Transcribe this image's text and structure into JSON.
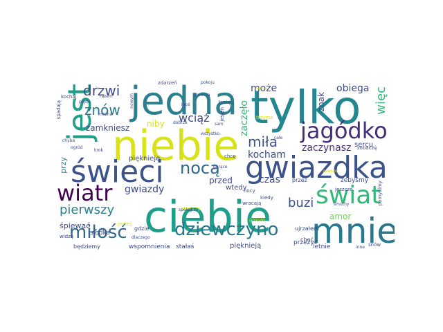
{
  "words": {
    "tylko": "tylko",
    "jedna": "jedna",
    "niebie": "niebie",
    "ciebie": "ciebie",
    "mnie": "mnie",
    "swieci": "świeci",
    "gwiazdka": "gwiazdka",
    "swiat": "świat",
    "jagodko": "jagódko",
    "jest": "jest",
    "wiatr": "wiatr",
    "drzwi": "drzwi",
    "nocą": "nocą",
    "milosc": "miłość",
    "dziewczyno": "dziewczyno",
    "pierwszy": "pierwszy",
    "znow": "znów",
    "mila": "miła",
    "kocham": "kocham",
    "buzi": "buzi",
    "wciaz": "wciąż",
    "moze": "może",
    "obiega": "obiega",
    "zaczelo": "zaczęło",
    "wiec": "więc",
    "zamkniesz": "zamkniesz",
    "zaczynasz": "zaczynasz",
    "gwiazdy": "gwiazdy",
    "przed": "przed",
    "czas": "czas",
    "niby": "niby",
    "znak": "znak",
    "amor": "amor",
    "spiewac": "śpiewać",
    "wtedy": "wtedy",
    "sercu": "sercu",
    "pieknieja": "pięknieją",
    "przy": "przy",
    "pieknieje": "pięknieje",
    "slodka": "słodka",
    "stalas": "stałaś",
    "przezyc": "przeżyć",
    "wspomnienia": "wspomnienia",
    "letnie": "letnie",
    "bedziemy": "będziemy",
    "gdzie": "gdzie",
    "ujrzalem": "ujrzałem",
    "zebysmy": "żebyśmy",
    "przez": "przez",
    "choc": "choć",
    "jestes": "jesteś",
    "byłas": "byłaś",
    "spadaja": "spadają",
    "kochaj": "kochaj",
    "mozna": "można",
    "ktos": "ktoś",
    "nocy": "nocy",
    "kiedy": "kiedy",
    "prosze": "proszę",
    "wracaja": "wracają",
    "jesien": "jesień",
    "tysiac": "tysiąc",
    "zdarzen": "zdarzeń",
    "chce": "chcę",
    "zobacze": "zobaczę",
    "jeszcze": "jeszcze",
    "pomyslmy": "pomyślmy",
    "widze": "widzę",
    "skonczy": "skończy",
    "snow": "snów",
    "trzyma": "trzyma",
    "pokoju": "pokoju",
    "serca": "serca",
    "spokojnie": "spokojnie",
    "smutny": "smutny",
    "inne": "inne",
    "zmienia": "zmienia",
    "dlaczego": "dlaczego",
    "pojde": "pójdę",
    "wszystko": "wszystko",
    "sam": "sam",
    "razem": "razem",
    "nowym": "nowym",
    "ogrod": "ogród",
    "chyba": "chyba",
    "krok": "krok",
    "gorace": "gorące",
    "dobrze": "dobrze",
    "cale": "całe",
    "zawsze": "zawsze"
  },
  "palette": {
    "dark_purple": "#440154",
    "indigo": "#472c7a",
    "blue": "#3b528b",
    "slate": "#31688e",
    "teal": "#26828e",
    "green_teal": "#1f9e89",
    "green": "#35b779",
    "lime": "#6ece58",
    "yellow_green": "#b5de2b",
    "yellow": "#d8e219",
    "bright_yellow": "#fde725"
  }
}
